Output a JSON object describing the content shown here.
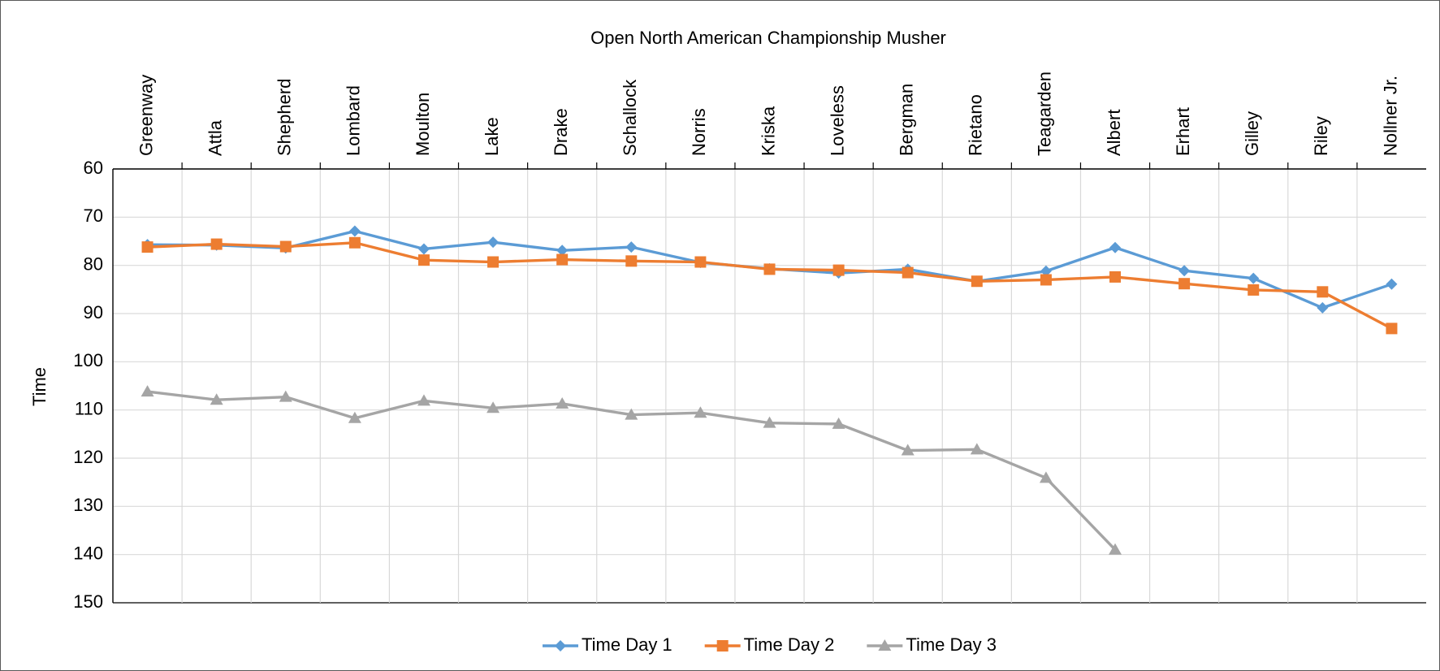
{
  "chart_data": {
    "type": "line",
    "title": "Open North American Championship Musher",
    "y_label": "Time",
    "categories": [
      "Greenway",
      "Attla",
      "Shepherd",
      "Lombard",
      "Moulton",
      "Lake",
      "Drake",
      "Schallock",
      "Norris",
      "Kriska",
      "Loveless",
      "Bergman",
      "Rietano",
      "Teagarden",
      "Albert",
      "Erhart",
      "Gilley",
      "Riley",
      "Nollner Jr."
    ],
    "series": [
      {
        "name": "Time Day 1",
        "color": "#5b9bd5",
        "marker": "diamond",
        "values": [
          75.7,
          75.8,
          76.4,
          72.9,
          76.6,
          75.2,
          76.9,
          76.2,
          79.4,
          80.7,
          81.6,
          80.8,
          83.3,
          81.2,
          76.3,
          81.1,
          82.7,
          88.8,
          83.9
        ]
      },
      {
        "name": "Time Day 2",
        "color": "#ed7d31",
        "marker": "square",
        "values": [
          76.2,
          75.6,
          76.1,
          75.3,
          78.9,
          79.3,
          78.8,
          79.1,
          79.3,
          80.8,
          81.0,
          81.5,
          83.3,
          83.0,
          82.4,
          83.8,
          85.1,
          85.5,
          93.1
        ]
      },
      {
        "name": "Time Day 3",
        "color": "#a5a5a5",
        "marker": "triangle",
        "values": [
          106.2,
          107.9,
          107.3,
          111.7,
          108.1,
          109.6,
          108.7,
          111.0,
          110.6,
          112.7,
          112.9,
          118.4,
          118.2,
          124.1,
          139.0,
          null,
          null,
          null,
          null
        ]
      }
    ],
    "ylim": [
      60,
      150
    ],
    "y_inverted": true,
    "yticks": [
      60,
      70,
      80,
      90,
      100,
      110,
      120,
      130,
      140,
      150
    ],
    "grid": true,
    "legend": "bottom"
  }
}
